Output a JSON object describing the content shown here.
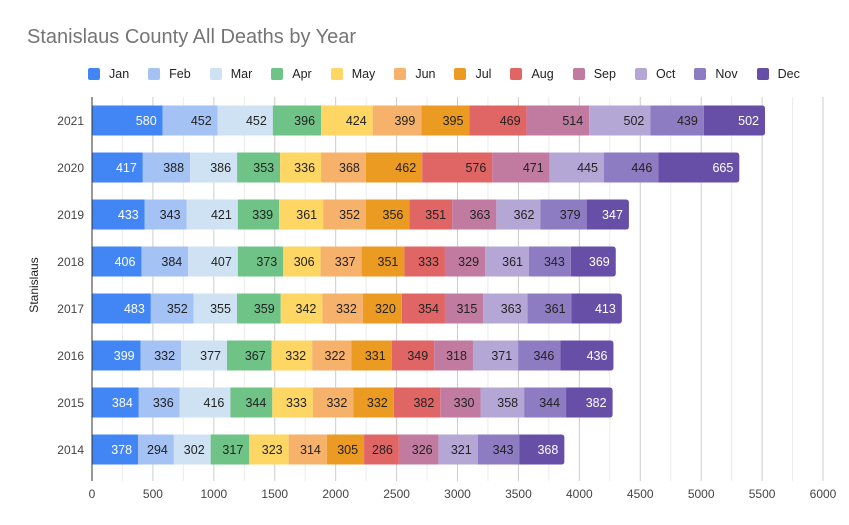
{
  "chart_data": {
    "type": "bar",
    "orientation": "horizontal",
    "stacked": true,
    "title": "Stanislaus County All Deaths by Year",
    "xlabel": "",
    "ylabel": "Stanislaus",
    "xlim": [
      0,
      6000
    ],
    "x_ticks": [
      0,
      500,
      1000,
      1500,
      2000,
      2500,
      3000,
      3500,
      4000,
      4500,
      5000,
      5500,
      6000
    ],
    "grid": true,
    "legend_position": "top",
    "categories": [
      "2021",
      "2020",
      "2019",
      "2018",
      "2017",
      "2016",
      "2015",
      "2014"
    ],
    "series": [
      {
        "name": "Jan",
        "color": "#4285f4",
        "label_color": "#ffffff",
        "values": [
          580,
          417,
          433,
          406,
          483,
          399,
          384,
          378
        ]
      },
      {
        "name": "Feb",
        "color": "#a4c2f4",
        "label_color": "#222222",
        "values": [
          452,
          388,
          343,
          384,
          352,
          332,
          336,
          294
        ]
      },
      {
        "name": "Mar",
        "color": "#cfe2f3",
        "label_color": "#222222",
        "values": [
          452,
          386,
          421,
          407,
          355,
          377,
          416,
          302
        ]
      },
      {
        "name": "Apr",
        "color": "#6fc387",
        "label_color": "#222222",
        "values": [
          396,
          353,
          339,
          373,
          359,
          367,
          344,
          317
        ]
      },
      {
        "name": "May",
        "color": "#fdd663",
        "label_color": "#222222",
        "values": [
          424,
          336,
          361,
          306,
          342,
          332,
          333,
          323
        ]
      },
      {
        "name": "Jun",
        "color": "#f6b26b",
        "label_color": "#222222",
        "values": [
          399,
          368,
          352,
          337,
          332,
          322,
          332,
          314
        ]
      },
      {
        "name": "Jul",
        "color": "#ec9b22",
        "label_color": "#222222",
        "values": [
          395,
          462,
          356,
          351,
          320,
          331,
          332,
          305
        ]
      },
      {
        "name": "Aug",
        "color": "#e06666",
        "label_color": "#222222",
        "values": [
          469,
          576,
          351,
          333,
          354,
          349,
          382,
          286
        ]
      },
      {
        "name": "Sep",
        "color": "#c27ba0",
        "label_color": "#222222",
        "values": [
          514,
          471,
          363,
          329,
          315,
          318,
          330,
          326
        ]
      },
      {
        "name": "Oct",
        "color": "#b4a7d6",
        "label_color": "#222222",
        "values": [
          502,
          445,
          362,
          361,
          363,
          371,
          358,
          321
        ]
      },
      {
        "name": "Nov",
        "color": "#8e7cc3",
        "label_color": "#222222",
        "values": [
          439,
          446,
          379,
          343,
          361,
          346,
          344,
          343
        ]
      },
      {
        "name": "Dec",
        "color": "#674ea7",
        "label_color": "#ffffff",
        "values": [
          502,
          665,
          347,
          369,
          413,
          436,
          382,
          368
        ]
      }
    ]
  }
}
